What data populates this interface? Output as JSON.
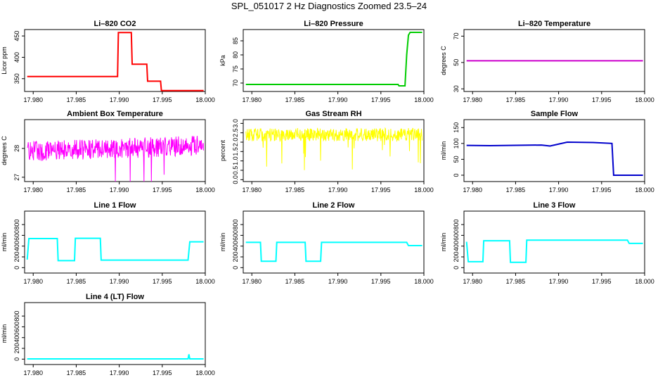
{
  "title": "SPL_051017  2 Hz Diagnostics Zoomed 23.5–24",
  "chart_data": [
    {
      "type": "line",
      "title": "Li–820 CO2",
      "ylabel": "Licor ppm",
      "color": "#ff0000",
      "xlim": [
        17.979,
        18.0
      ],
      "ylim": [
        320,
        465
      ],
      "yticks": [
        350,
        400,
        450
      ],
      "xticks": [
        17.98,
        17.985,
        17.99,
        17.995,
        18.0
      ],
      "xticklabels": [
        "17.980",
        "17.985",
        "17.990",
        "17.995",
        "18.000"
      ],
      "x": [
        17.9793,
        17.9898,
        17.9899,
        17.9914,
        17.9915,
        17.9932,
        17.9933,
        17.9948,
        17.9949,
        17.9998
      ],
      "y": [
        355,
        355,
        458,
        458,
        384,
        384,
        344,
        344,
        322,
        322
      ]
    },
    {
      "type": "line",
      "title": "Li–820 Pressure",
      "ylabel": "kPa",
      "color": "#00cc00",
      "xlim": [
        17.979,
        18.0
      ],
      "ylim": [
        67,
        89
      ],
      "yticks": [
        70,
        75,
        80,
        85
      ],
      "xticks": [
        17.98,
        17.985,
        17.99,
        17.995,
        18.0
      ],
      "xticklabels": [
        "17.980",
        "17.985",
        "17.990",
        "17.995",
        "18.000"
      ],
      "x": [
        17.9793,
        17.997,
        17.9971,
        17.9978,
        17.998,
        17.9982,
        17.9984,
        17.9998
      ],
      "y": [
        69.5,
        69.5,
        69.0,
        69.0,
        80,
        87,
        88,
        88
      ]
    },
    {
      "type": "line",
      "title": "Li–820 Temperature",
      "ylabel": "degrees C",
      "color": "#cc00cc",
      "xlim": [
        17.979,
        18.0
      ],
      "ylim": [
        28,
        75
      ],
      "yticks": [
        30,
        50,
        70
      ],
      "xticks": [
        17.98,
        17.985,
        17.99,
        17.995,
        18.0
      ],
      "xticklabels": [
        "17.980",
        "17.985",
        "17.990",
        "17.995",
        "18.000"
      ],
      "x": [
        17.9793,
        17.9998
      ],
      "y": [
        51.3,
        51.3
      ]
    },
    {
      "type": "line",
      "title": "Ambient Box Temperature",
      "ylabel": "degrees C",
      "color": "#ff00ff",
      "xlim": [
        17.979,
        18.0
      ],
      "ylim": [
        26.85,
        29.0
      ],
      "yticks": [
        27.0,
        28.0
      ],
      "xticks": [
        17.98,
        17.985,
        17.99,
        17.995,
        18.0
      ],
      "xticklabels": [
        "17.980",
        "17.985",
        "17.990",
        "17.995",
        "18.000"
      ],
      "x": [
        17.9793,
        17.9998
      ],
      "y": [
        27.9,
        28.1
      ],
      "noise": 0.35
    },
    {
      "type": "line",
      "title": "Gas Stream RH",
      "ylabel": "percent",
      "color": "#ffff00",
      "xlim": [
        17.979,
        18.0
      ],
      "ylim": [
        -0.1,
        3.2
      ],
      "yticks": [
        0.0,
        0.5,
        1.0,
        1.5,
        2.0,
        2.5,
        3.0
      ],
      "xticks": [
        17.98,
        17.985,
        17.99,
        17.995,
        18.0
      ],
      "xticklabels": [
        "17.980",
        "17.985",
        "17.990",
        "17.995",
        "18.000"
      ],
      "x": [
        17.9793,
        17.9998
      ],
      "y": [
        2.4,
        2.4
      ],
      "noise": 0.35
    },
    {
      "type": "line",
      "title": "Sample Flow",
      "ylabel": "ml/min",
      "color": "#0000cc",
      "xlim": [
        17.979,
        18.0
      ],
      "ylim": [
        -20,
        175
      ],
      "yticks": [
        0,
        50,
        100,
        150
      ],
      "xticks": [
        17.98,
        17.985,
        17.99,
        17.995,
        18.0
      ],
      "xticklabels": [
        "17.980",
        "17.985",
        "17.990",
        "17.995",
        "18.000"
      ],
      "x": [
        17.9793,
        17.982,
        17.988,
        17.989,
        17.991,
        17.994,
        17.9962,
        17.9964,
        17.9998
      ],
      "y": [
        94,
        93,
        95,
        92,
        104,
        103,
        100,
        0,
        0
      ]
    },
    {
      "type": "line",
      "title": "Line 1 Flow",
      "ylabel": "ml/min",
      "color": "#00ffff",
      "xlim": [
        17.979,
        18.0
      ],
      "ylim": [
        -100,
        1050
      ],
      "yticks": [
        0,
        200,
        400,
        600,
        800
      ],
      "xticks": [
        17.98,
        17.985,
        17.99,
        17.995,
        18.0
      ],
      "xticklabels": [
        "17.980",
        "17.985",
        "17.990",
        "17.995",
        "18.000"
      ],
      "x": [
        17.9793,
        17.9795,
        17.9828,
        17.9829,
        17.9848,
        17.9849,
        17.9878,
        17.9879,
        17.998,
        17.9982,
        17.9998
      ],
      "y": [
        150,
        540,
        540,
        130,
        130,
        545,
        545,
        140,
        140,
        480,
        480
      ]
    },
    {
      "type": "line",
      "title": "Line 2 Flow",
      "ylabel": "ml/min",
      "color": "#00ffff",
      "xlim": [
        17.979,
        18.0
      ],
      "ylim": [
        -100,
        1050
      ],
      "yticks": [
        0,
        200,
        400,
        600,
        800
      ],
      "xticks": [
        17.98,
        17.985,
        17.99,
        17.995,
        18.0
      ],
      "xticklabels": [
        "17.980",
        "17.985",
        "17.990",
        "17.995",
        "18.000"
      ],
      "x": [
        17.9793,
        17.981,
        17.9811,
        17.9828,
        17.9829,
        17.9862,
        17.9863,
        17.988,
        17.9881,
        17.998,
        17.9982,
        17.9998
      ],
      "y": [
        470,
        470,
        120,
        120,
        470,
        470,
        120,
        120,
        470,
        470,
        410,
        410
      ]
    },
    {
      "type": "line",
      "title": "Line 3 Flow",
      "ylabel": "ml/min",
      "color": "#00ffff",
      "xlim": [
        17.979,
        18.0
      ],
      "ylim": [
        -100,
        1050
      ],
      "yticks": [
        0,
        200,
        400,
        600,
        800
      ],
      "xticks": [
        17.98,
        17.985,
        17.99,
        17.995,
        18.0
      ],
      "xticklabels": [
        "17.980",
        "17.985",
        "17.990",
        "17.995",
        "18.000"
      ],
      "x": [
        17.9793,
        17.9795,
        17.9812,
        17.9813,
        17.9843,
        17.9844,
        17.9862,
        17.9863,
        17.998,
        17.9982,
        17.9998
      ],
      "y": [
        480,
        110,
        110,
        500,
        500,
        100,
        100,
        510,
        510,
        450,
        450
      ]
    },
    {
      "type": "line",
      "title": "Line 4 (LT) Flow",
      "ylabel": "ml/min",
      "color": "#00ffff",
      "xlim": [
        17.979,
        18.0
      ],
      "ylim": [
        -100,
        1050
      ],
      "yticks": [
        0,
        200,
        400,
        600,
        800
      ],
      "xticks": [
        17.98,
        17.985,
        17.99,
        17.995,
        18.0
      ],
      "xticklabels": [
        "17.980",
        "17.985",
        "17.990",
        "17.995",
        "18.000"
      ],
      "x": [
        17.9793,
        17.998,
        17.9981,
        17.9982,
        17.9998
      ],
      "y": [
        5,
        5,
        90,
        5,
        5
      ]
    }
  ]
}
